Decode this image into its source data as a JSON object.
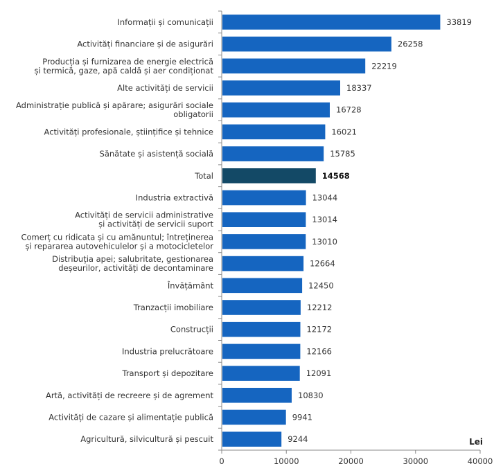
{
  "chart_data": {
    "type": "bar",
    "orientation": "horizontal",
    "title": "",
    "xlabel": "Lei",
    "ylabel": "",
    "xlim": [
      0,
      40000
    ],
    "xticks": [
      0,
      10000,
      20000,
      30000,
      40000
    ],
    "xtick_labels": [
      "0",
      "10000",
      "20000",
      "30000",
      "40000"
    ],
    "grid": false,
    "colors": {
      "default": "#1565C0",
      "highlight": "#134966"
    },
    "categories": [
      [
        "Informații și comunicații"
      ],
      [
        "Activități financiare și de asigurări"
      ],
      [
        "Producția și furnizarea de energie electrică",
        "și termică, gaze, apă caldă și aer condiționat"
      ],
      [
        "Alte activități de servicii"
      ],
      [
        "Administrație publică și apărare; asigurări sociale",
        "obligatorii"
      ],
      [
        "Activități profesionale, științifice și tehnice"
      ],
      [
        "Sănătate și asistență socială"
      ],
      [
        "Total"
      ],
      [
        "Industria extractivă"
      ],
      [
        "Activități de servicii administrative",
        "și activități de servicii suport"
      ],
      [
        "Comerț cu ridicata și cu amănuntul; întreținerea",
        "și repararea autovehiculelor și a motocicletelor"
      ],
      [
        "Distribuția apei; salubritate, gestionarea",
        "deșeurilor, activități de decontaminare"
      ],
      [
        "Învățământ"
      ],
      [
        "Tranzacții imobiliare"
      ],
      [
        "Construcții"
      ],
      [
        "Industria prelucrătoare"
      ],
      [
        "Transport și depozitare"
      ],
      [
        "Artă, activități de recreere și de agrement"
      ],
      [
        "Activități de cazare și alimentație publică"
      ],
      [
        "Agricultură, silvicultură și pescuit"
      ]
    ],
    "values": [
      33819,
      26258,
      22219,
      18337,
      16728,
      16021,
      15785,
      14568,
      13044,
      13014,
      13010,
      12664,
      12450,
      12212,
      12172,
      12166,
      12091,
      10830,
      9941,
      9244
    ],
    "highlight_index": 7
  }
}
